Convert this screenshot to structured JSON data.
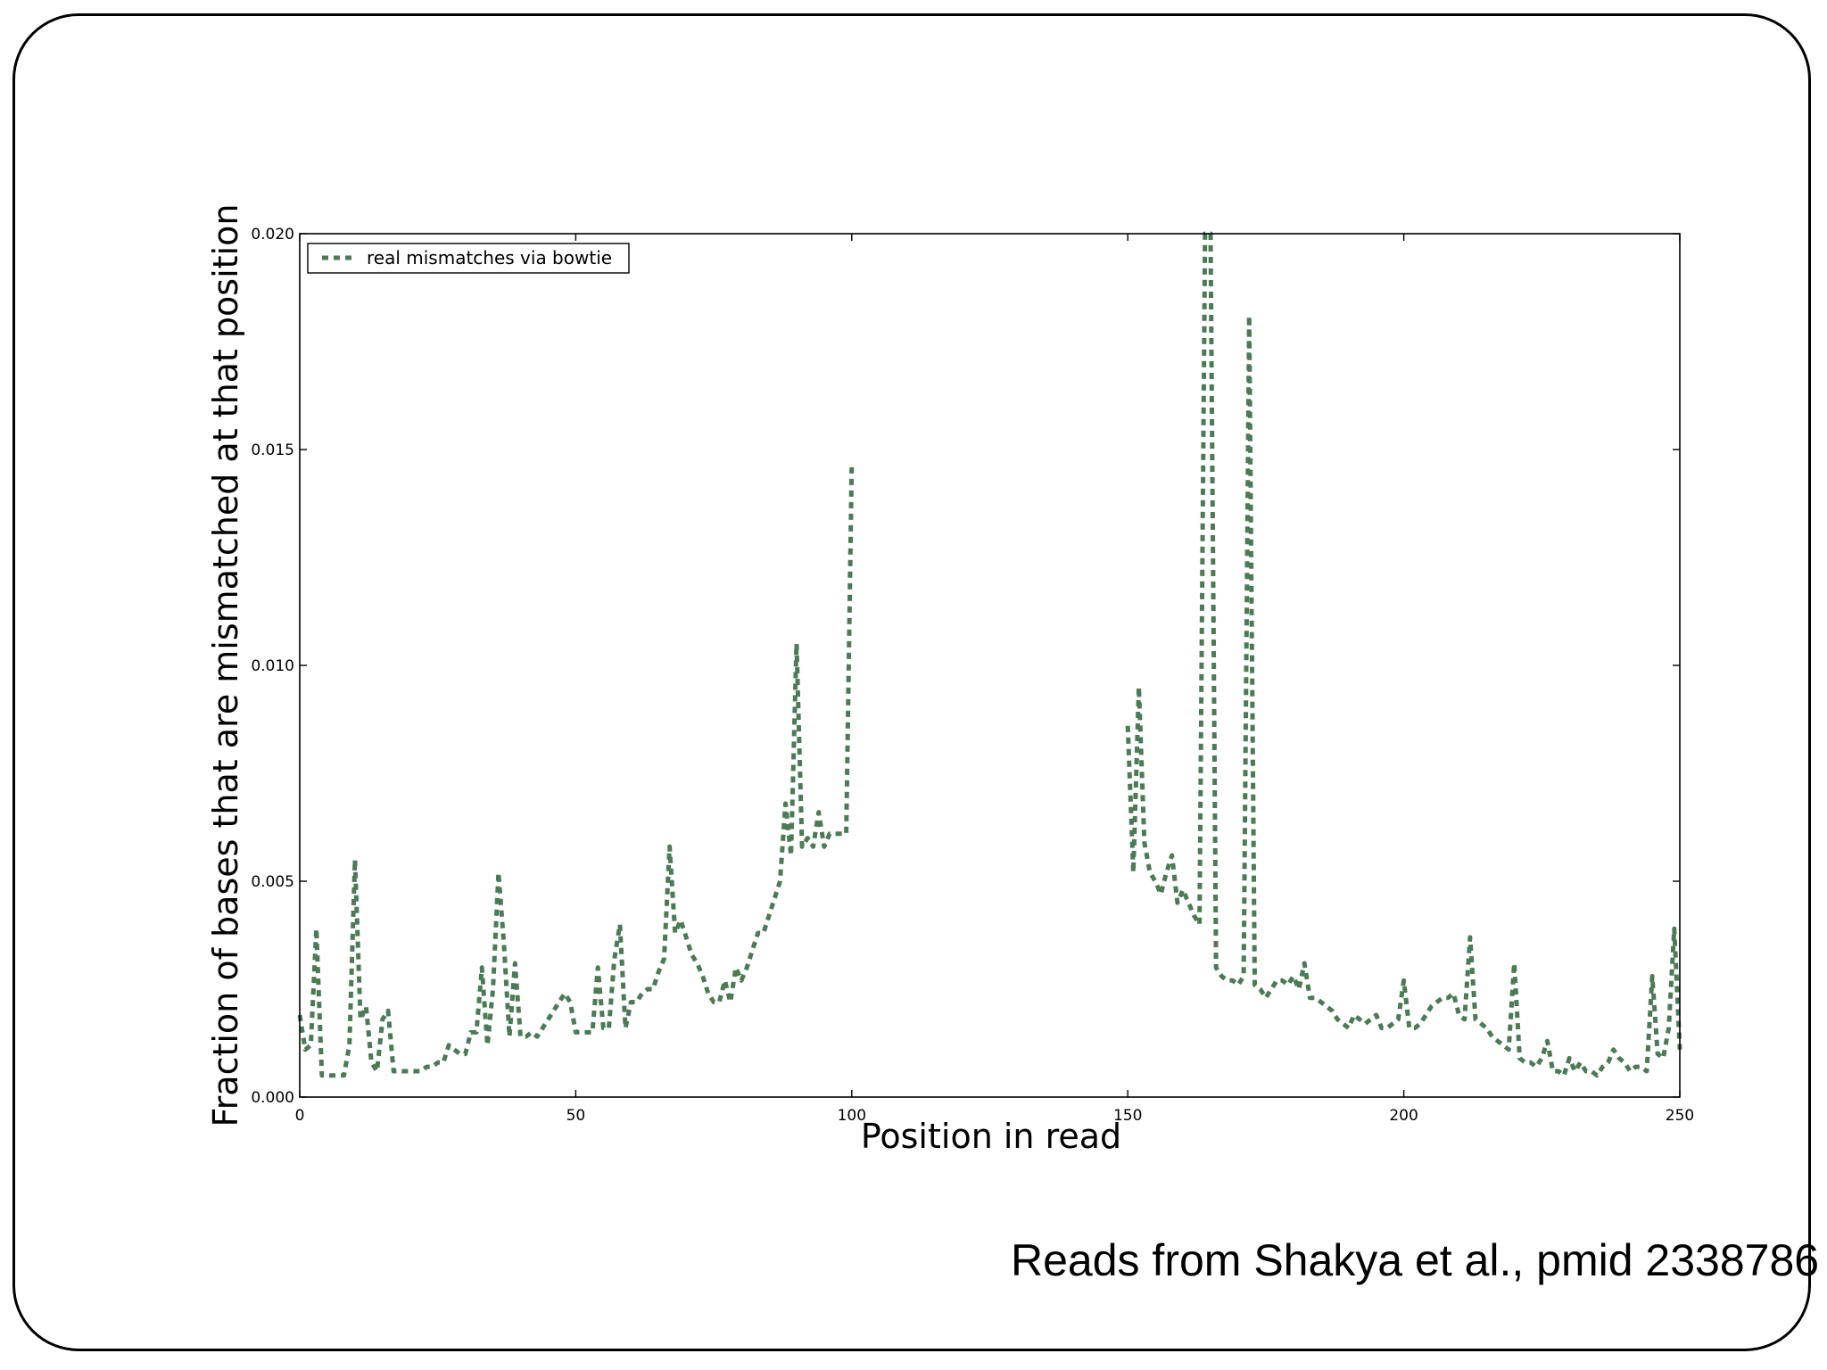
{
  "slide": {
    "credit": "Reads from Shakya et al., pmid 2338786"
  },
  "chart_data": {
    "type": "line",
    "xlabel": "Position in read",
    "ylabel": "Fraction of bases that are mismatched at that position",
    "xlim": [
      0,
      250
    ],
    "ylim": [
      0,
      0.02
    ],
    "x_ticks": [
      0,
      50,
      100,
      150,
      200,
      250
    ],
    "y_ticks": [
      0.0,
      0.005,
      0.01,
      0.015,
      0.02
    ],
    "x_tick_labels": [
      "0",
      "50",
      "100",
      "150",
      "200",
      "250"
    ],
    "y_tick_labels": [
      "0.000",
      "0.005",
      "0.010",
      "0.015",
      "0.020"
    ],
    "grid": false,
    "legend": {
      "position": "top-left"
    },
    "colors": {
      "line": "#4b7a55"
    },
    "series": [
      {
        "name": "real mismatches via bowtie",
        "segments": [
          {
            "x": [
              0,
              1,
              2,
              3,
              4,
              5,
              6,
              7,
              8,
              9,
              10,
              11,
              12,
              13,
              14,
              15,
              16,
              17,
              18,
              19,
              20,
              21,
              22,
              23,
              24,
              25,
              26,
              27,
              28,
              29,
              30,
              31,
              32,
              33,
              34,
              35,
              36,
              37,
              38,
              39,
              40,
              41,
              42,
              43,
              44,
              45,
              46,
              47,
              48,
              49,
              50,
              51,
              52,
              53,
              54,
              55,
              56,
              57,
              58,
              59,
              60,
              61,
              62,
              63,
              64,
              65,
              66,
              67,
              68,
              69,
              70,
              71,
              72,
              73,
              74,
              75,
              76,
              77,
              78,
              79,
              80,
              81,
              82,
              83,
              84,
              85,
              86,
              87,
              88,
              89,
              90,
              91,
              92,
              93,
              94,
              95,
              96,
              97,
              98,
              99,
              100
            ],
            "y": [
              0.0019,
              0.0011,
              0.0012,
              0.0039,
              0.0005,
              0.0005,
              0.0005,
              0.0005,
              0.0005,
              0.0012,
              0.0055,
              0.0018,
              0.0021,
              0.0008,
              0.0006,
              0.0018,
              0.002,
              0.0006,
              0.0006,
              0.0006,
              0.0006,
              0.0006,
              0.0006,
              0.0007,
              0.0007,
              0.0008,
              0.0008,
              0.0012,
              0.0011,
              0.001,
              0.001,
              0.0015,
              0.0015,
              0.003,
              0.0012,
              0.0025,
              0.0052,
              0.0035,
              0.0014,
              0.0031,
              0.0014,
              0.0014,
              0.0015,
              0.0014,
              0.0016,
              0.0018,
              0.002,
              0.0022,
              0.0024,
              0.0022,
              0.0015,
              0.0015,
              0.0015,
              0.0015,
              0.003,
              0.0016,
              0.0016,
              0.0032,
              0.004,
              0.0016,
              0.0022,
              0.0022,
              0.0024,
              0.0025,
              0.0025,
              0.0029,
              0.0032,
              0.0058,
              0.0038,
              0.0041,
              0.0037,
              0.0033,
              0.0031,
              0.0028,
              0.0024,
              0.0022,
              0.0022,
              0.0027,
              0.0022,
              0.003,
              0.0027,
              0.003,
              0.0034,
              0.0038,
              0.0038,
              0.0042,
              0.0046,
              0.005,
              0.0068,
              0.0056,
              0.0105,
              0.0058,
              0.006,
              0.0058,
              0.0066,
              0.0058,
              0.0061,
              0.0061,
              0.0061,
              0.0061,
              0.0147
            ]
          },
          {
            "x": [
              150,
              151,
              152,
              153,
              154,
              155,
              156,
              157,
              158,
              159,
              160,
              161,
              162,
              163,
              164,
              165,
              166,
              167,
              168,
              169,
              170,
              171,
              172,
              173,
              174,
              175,
              176,
              177,
              178,
              179,
              180,
              181,
              182,
              183,
              184,
              185,
              186,
              187,
              188,
              189,
              190,
              191,
              192,
              193,
              194,
              195,
              196,
              197,
              198,
              199,
              200,
              201,
              202,
              203,
              204,
              205,
              206,
              207,
              208,
              209,
              210,
              211,
              212,
              213,
              214,
              215,
              216,
              217,
              218,
              219,
              220,
              221,
              222,
              223,
              224,
              225,
              226,
              227,
              228,
              229,
              230,
              231,
              232,
              233,
              234,
              235,
              236,
              237,
              238,
              239,
              240,
              241,
              242,
              243,
              244,
              245,
              246,
              247,
              248,
              249,
              250
            ],
            "y": [
              0.0086,
              0.0052,
              0.0095,
              0.0059,
              0.0052,
              0.005,
              0.0047,
              0.0052,
              0.0056,
              0.0045,
              0.0048,
              0.0045,
              0.0042,
              0.004,
              0.02,
              0.02,
              0.003,
              0.0028,
              0.0027,
              0.0027,
              0.0026,
              0.0028,
              0.0181,
              0.0026,
              0.0025,
              0.0023,
              0.0025,
              0.0027,
              0.0027,
              0.0026,
              0.0028,
              0.0025,
              0.0031,
              0.0023,
              0.0023,
              0.0022,
              0.0021,
              0.002,
              0.0018,
              0.0017,
              0.0016,
              0.0019,
              0.0018,
              0.0017,
              0.0018,
              0.0019,
              0.0016,
              0.0016,
              0.0017,
              0.0018,
              0.0027,
              0.0016,
              0.0016,
              0.0017,
              0.0019,
              0.0021,
              0.0022,
              0.0023,
              0.0023,
              0.0024,
              0.0019,
              0.0018,
              0.0037,
              0.0018,
              0.0017,
              0.0016,
              0.0014,
              0.0013,
              0.0012,
              0.0011,
              0.0031,
              0.0009,
              0.0008,
              0.0008,
              0.0007,
              0.0009,
              0.0013,
              0.0006,
              0.0006,
              0.0005,
              0.0009,
              0.0006,
              0.0008,
              0.0006,
              0.0006,
              0.0005,
              0.0007,
              0.0008,
              0.0011,
              0.0009,
              0.0008,
              0.0006,
              0.0007,
              0.0007,
              0.0006,
              0.0028,
              0.001,
              0.0009,
              0.0016,
              0.0039,
              0.0011
            ]
          }
        ]
      }
    ]
  }
}
